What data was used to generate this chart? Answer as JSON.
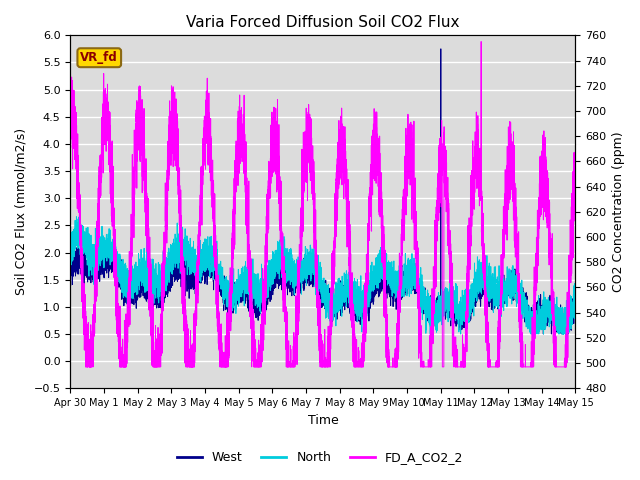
{
  "title": "Varia Forced Diffusion Soil CO2 Flux",
  "ylabel_left": "Soil CO2 Flux (mmol/m2/s)",
  "ylabel_right": "CO2 Concentration (ppm)",
  "xlabel": "Time",
  "ylim_left": [
    -0.5,
    6.0
  ],
  "ylim_right": [
    480,
    760
  ],
  "color_west": "#00008B",
  "color_north": "#00CCDD",
  "color_co2": "#FF00FF",
  "label_box_text": "VR_fd",
  "label_box_facecolor": "#FFD700",
  "label_box_edgecolor": "#8B6914",
  "background_color": "#DCDCDC",
  "n_points": 7200,
  "xtick_labels": [
    "Apr 30",
    "May 1",
    "May 2",
    "May 3",
    "May 4",
    "May 5",
    "May 6",
    "May 7",
    "May 8",
    "May 9",
    "May 10",
    "May 11",
    "May 12",
    "May 13",
    "May 14",
    "May 15"
  ],
  "figsize": [
    6.4,
    4.8
  ],
  "dpi": 100
}
